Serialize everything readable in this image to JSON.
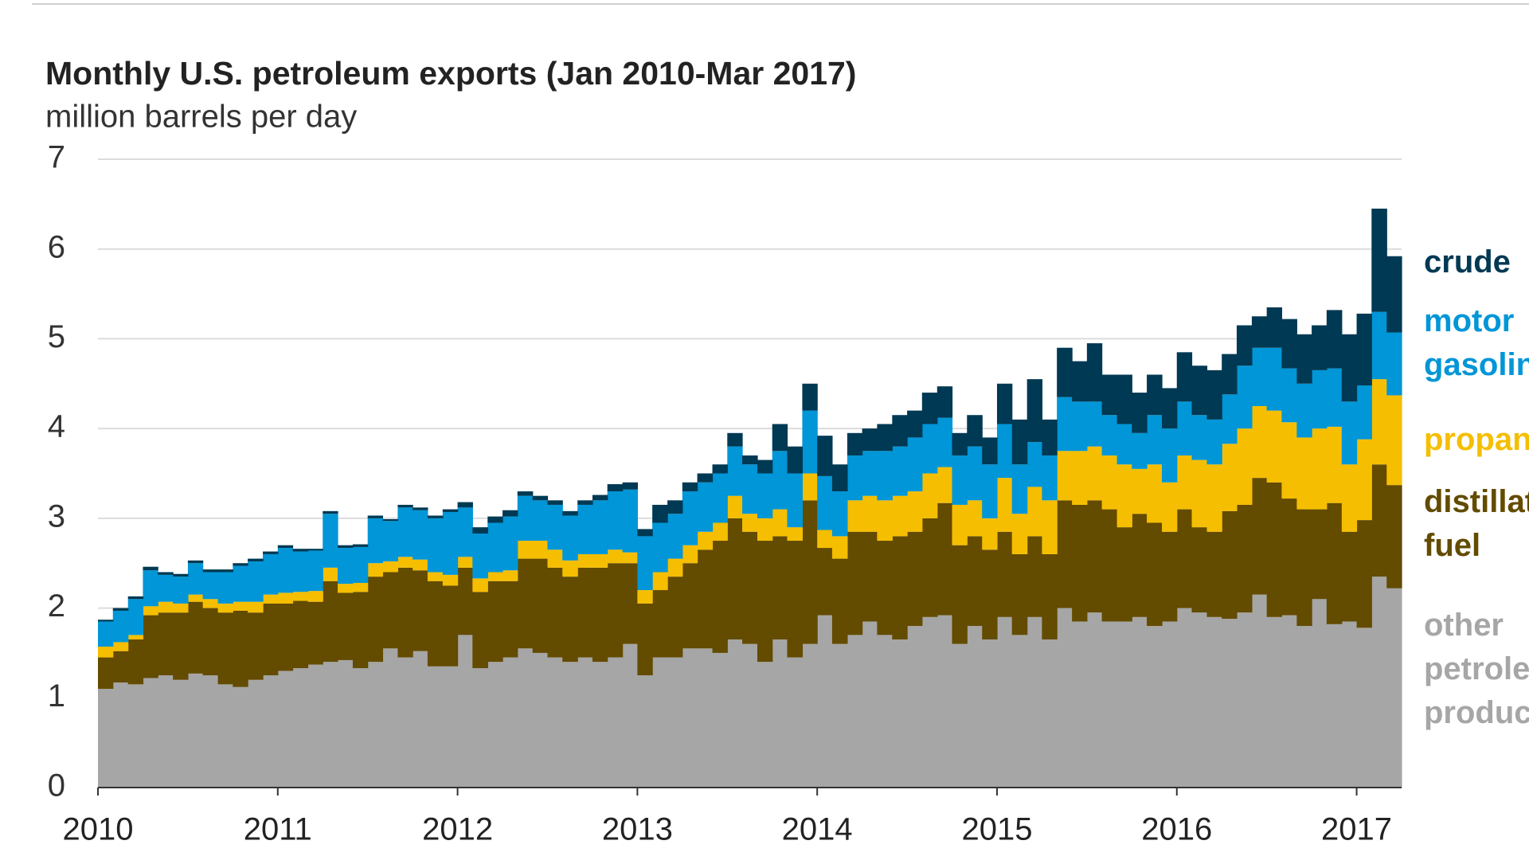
{
  "chart_data": {
    "type": "stacked-step-area",
    "title": "Monthly U.S. petroleum exports (Jan 2010-Mar 2017)",
    "subtitle": "million barrels per day",
    "x": [
      2010.0,
      2010.083,
      2010.167,
      2010.25,
      2010.333,
      2010.417,
      2010.5,
      2010.583,
      2010.667,
      2010.75,
      2010.833,
      2010.917,
      2011.0,
      2011.083,
      2011.167,
      2011.25,
      2011.333,
      2011.417,
      2011.5,
      2011.583,
      2011.667,
      2011.75,
      2011.833,
      2011.917,
      2012.0,
      2012.083,
      2012.167,
      2012.25,
      2012.333,
      2012.417,
      2012.5,
      2012.583,
      2012.667,
      2012.75,
      2012.833,
      2012.917,
      2013.0,
      2013.083,
      2013.167,
      2013.25,
      2013.333,
      2013.417,
      2013.5,
      2013.583,
      2013.667,
      2013.75,
      2013.833,
      2013.917,
      2014.0,
      2014.083,
      2014.167,
      2014.25,
      2014.333,
      2014.417,
      2014.5,
      2014.583,
      2014.667,
      2014.75,
      2014.833,
      2014.917,
      2015.0,
      2015.083,
      2015.167,
      2015.25,
      2015.333,
      2015.417,
      2015.5,
      2015.583,
      2015.667,
      2015.75,
      2015.833,
      2015.917,
      2016.0,
      2016.083,
      2016.167,
      2016.25,
      2016.333,
      2016.417,
      2016.5,
      2016.583,
      2016.667,
      2016.75,
      2016.833,
      2016.917,
      2017.0,
      2017.083,
      2017.167
    ],
    "series": [
      {
        "name": "other petroleum products",
        "color": "#a6a6a6",
        "values": [
          1.1,
          1.17,
          1.15,
          1.22,
          1.25,
          1.2,
          1.27,
          1.25,
          1.15,
          1.12,
          1.2,
          1.25,
          1.3,
          1.33,
          1.37,
          1.4,
          1.42,
          1.33,
          1.4,
          1.55,
          1.45,
          1.52,
          1.35,
          1.35,
          1.7,
          1.33,
          1.4,
          1.45,
          1.55,
          1.5,
          1.45,
          1.4,
          1.45,
          1.4,
          1.45,
          1.6,
          1.25,
          1.45,
          1.45,
          1.55,
          1.55,
          1.5,
          1.65,
          1.6,
          1.4,
          1.65,
          1.45,
          1.6,
          1.92,
          1.6,
          1.7,
          1.85,
          1.7,
          1.65,
          1.8,
          1.9,
          1.92,
          1.6,
          1.8,
          1.65,
          1.9,
          1.7,
          1.9,
          1.65,
          2.0,
          1.85,
          1.95,
          1.85,
          1.85,
          1.9,
          1.8,
          1.85,
          2.0,
          1.95,
          1.9,
          1.88,
          1.95,
          2.15,
          1.9,
          1.92,
          1.8,
          2.1,
          1.82,
          1.85,
          1.78,
          2.35,
          2.22
        ]
      },
      {
        "name": "distillate fuel",
        "color": "#634b00",
        "values": [
          0.35,
          0.35,
          0.5,
          0.7,
          0.7,
          0.75,
          0.8,
          0.75,
          0.8,
          0.85,
          0.75,
          0.8,
          0.75,
          0.75,
          0.7,
          0.9,
          0.75,
          0.85,
          0.95,
          0.85,
          1.0,
          0.9,
          0.95,
          0.9,
          0.75,
          0.85,
          0.9,
          0.85,
          1.0,
          1.05,
          1.0,
          0.95,
          1.0,
          1.05,
          1.05,
          0.9,
          0.8,
          0.75,
          0.9,
          0.95,
          1.1,
          1.25,
          1.35,
          1.25,
          1.35,
          1.15,
          1.3,
          1.6,
          0.75,
          0.95,
          1.15,
          1.0,
          1.05,
          1.15,
          1.05,
          1.1,
          1.25,
          1.1,
          1.0,
          1.0,
          0.95,
          0.9,
          0.9,
          0.95,
          1.2,
          1.3,
          1.25,
          1.25,
          1.05,
          1.15,
          1.15,
          1.0,
          1.1,
          0.95,
          0.95,
          1.2,
          1.2,
          1.3,
          1.5,
          1.3,
          1.3,
          1.0,
          1.35,
          1.0,
          1.2,
          1.25,
          1.15
        ]
      },
      {
        "name": "propane",
        "color": "#f5be00",
        "values": [
          0.12,
          0.1,
          0.05,
          0.1,
          0.12,
          0.1,
          0.08,
          0.1,
          0.1,
          0.1,
          0.12,
          0.1,
          0.12,
          0.1,
          0.12,
          0.15,
          0.1,
          0.1,
          0.15,
          0.12,
          0.12,
          0.12,
          0.1,
          0.12,
          0.12,
          0.15,
          0.1,
          0.12,
          0.2,
          0.2,
          0.2,
          0.18,
          0.15,
          0.15,
          0.15,
          0.12,
          0.15,
          0.2,
          0.2,
          0.2,
          0.2,
          0.2,
          0.25,
          0.2,
          0.25,
          0.3,
          0.15,
          0.3,
          0.2,
          0.25,
          0.35,
          0.4,
          0.45,
          0.45,
          0.45,
          0.5,
          0.4,
          0.45,
          0.4,
          0.35,
          0.6,
          0.45,
          0.55,
          0.6,
          0.55,
          0.6,
          0.6,
          0.6,
          0.7,
          0.5,
          0.65,
          0.55,
          0.6,
          0.75,
          0.75,
          0.75,
          0.85,
          0.8,
          0.8,
          0.85,
          0.8,
          0.9,
          0.85,
          0.75,
          0.9,
          0.95,
          1.0
        ]
      },
      {
        "name": "motor gasoline",
        "color": "#0096d7",
        "values": [
          0.28,
          0.35,
          0.4,
          0.4,
          0.3,
          0.3,
          0.35,
          0.3,
          0.35,
          0.4,
          0.45,
          0.45,
          0.5,
          0.45,
          0.45,
          0.6,
          0.4,
          0.4,
          0.5,
          0.45,
          0.55,
          0.55,
          0.6,
          0.7,
          0.55,
          0.5,
          0.55,
          0.6,
          0.5,
          0.45,
          0.5,
          0.5,
          0.55,
          0.6,
          0.65,
          0.7,
          0.6,
          0.55,
          0.5,
          0.6,
          0.55,
          0.55,
          0.55,
          0.55,
          0.5,
          0.65,
          0.6,
          0.7,
          0.6,
          0.5,
          0.5,
          0.5,
          0.55,
          0.55,
          0.6,
          0.55,
          0.55,
          0.55,
          0.6,
          0.6,
          0.6,
          0.55,
          0.5,
          0.5,
          0.6,
          0.55,
          0.5,
          0.45,
          0.45,
          0.4,
          0.55,
          0.6,
          0.6,
          0.5,
          0.5,
          0.55,
          0.7,
          0.65,
          0.7,
          0.6,
          0.6,
          0.65,
          0.65,
          0.7,
          0.6,
          0.75,
          0.7
        ]
      },
      {
        "name": "crude",
        "color": "#003953",
        "values": [
          0.02,
          0.03,
          0.03,
          0.04,
          0.03,
          0.03,
          0.03,
          0.03,
          0.03,
          0.03,
          0.03,
          0.03,
          0.03,
          0.03,
          0.02,
          0.03,
          0.03,
          0.03,
          0.03,
          0.02,
          0.03,
          0.03,
          0.03,
          0.03,
          0.06,
          0.07,
          0.07,
          0.07,
          0.05,
          0.05,
          0.05,
          0.05,
          0.05,
          0.06,
          0.08,
          0.08,
          0.08,
          0.2,
          0.15,
          0.1,
          0.1,
          0.1,
          0.15,
          0.1,
          0.15,
          0.3,
          0.3,
          0.3,
          0.45,
          0.3,
          0.25,
          0.25,
          0.3,
          0.35,
          0.3,
          0.35,
          0.35,
          0.25,
          0.35,
          0.3,
          0.45,
          0.5,
          0.7,
          0.4,
          0.55,
          0.45,
          0.65,
          0.45,
          0.55,
          0.45,
          0.45,
          0.45,
          0.55,
          0.55,
          0.55,
          0.45,
          0.45,
          0.35,
          0.45,
          0.55,
          0.55,
          0.5,
          0.65,
          0.75,
          0.8,
          1.15,
          0.85
        ]
      }
    ],
    "xlim": [
      2010,
      2017.25
    ],
    "xticks": [
      2010,
      2011,
      2012,
      2013,
      2014,
      2015,
      2016,
      2017
    ],
    "ylim": [
      0,
      7
    ],
    "yticks": [
      0,
      1,
      2,
      3,
      4,
      5,
      6,
      7
    ],
    "grid": true
  }
}
